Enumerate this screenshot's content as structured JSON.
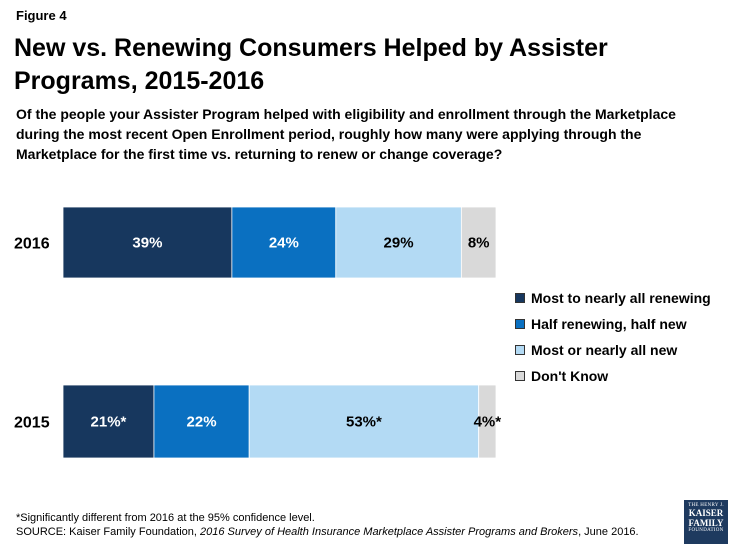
{
  "figure_label": "Figure 4",
  "title": "New vs. Renewing Consumers Helped by Assister Programs, 2015-2016",
  "subtitle": "Of the people your Assister Program helped with eligibility and enrollment through the Marketplace during the most recent Open Enrollment period, roughly how many were applying through the Marketplace for the first time vs. returning to renew or change coverage?",
  "chart_data": {
    "type": "bar",
    "orientation": "horizontal",
    "stacked": true,
    "categories": [
      "2016",
      "2015"
    ],
    "series": [
      {
        "name": "Most to nearly all renewing",
        "color": "#17375e",
        "values": [
          39,
          21
        ],
        "labels": [
          "39%",
          "21%*"
        ],
        "label_color": "#ffffff"
      },
      {
        "name": "Half renewing, half new",
        "color": "#0a70c1",
        "values": [
          24,
          22
        ],
        "labels": [
          "24%",
          "22%"
        ],
        "label_color": "#ffffff"
      },
      {
        "name": "Most or nearly all new",
        "color": "#b3daf4",
        "values": [
          29,
          53
        ],
        "labels": [
          "29%",
          "53%*"
        ],
        "label_color": "#000000"
      },
      {
        "name": "Don't Know",
        "color": "#d9d9d9",
        "values": [
          8,
          4
        ],
        "labels": [
          "8%",
          "4%*"
        ],
        "label_color": "#000000"
      }
    ],
    "xlim": [
      0,
      100
    ],
    "xlabel": "",
    "ylabel": "",
    "legend_position": "right"
  },
  "footnote": "*Significantly different from 2016 at the 95% confidence level.",
  "source_prefix": "SOURCE: Kaiser Family Foundation, ",
  "source_italic": "2016 Survey of Health Insurance Marketplace Assister Programs and Brokers",
  "source_suffix": ", June 2016.",
  "logo": {
    "top": "THE HENRY J.",
    "line1": "KAISER",
    "line2": "FAMILY",
    "bottom": "FOUNDATION"
  }
}
